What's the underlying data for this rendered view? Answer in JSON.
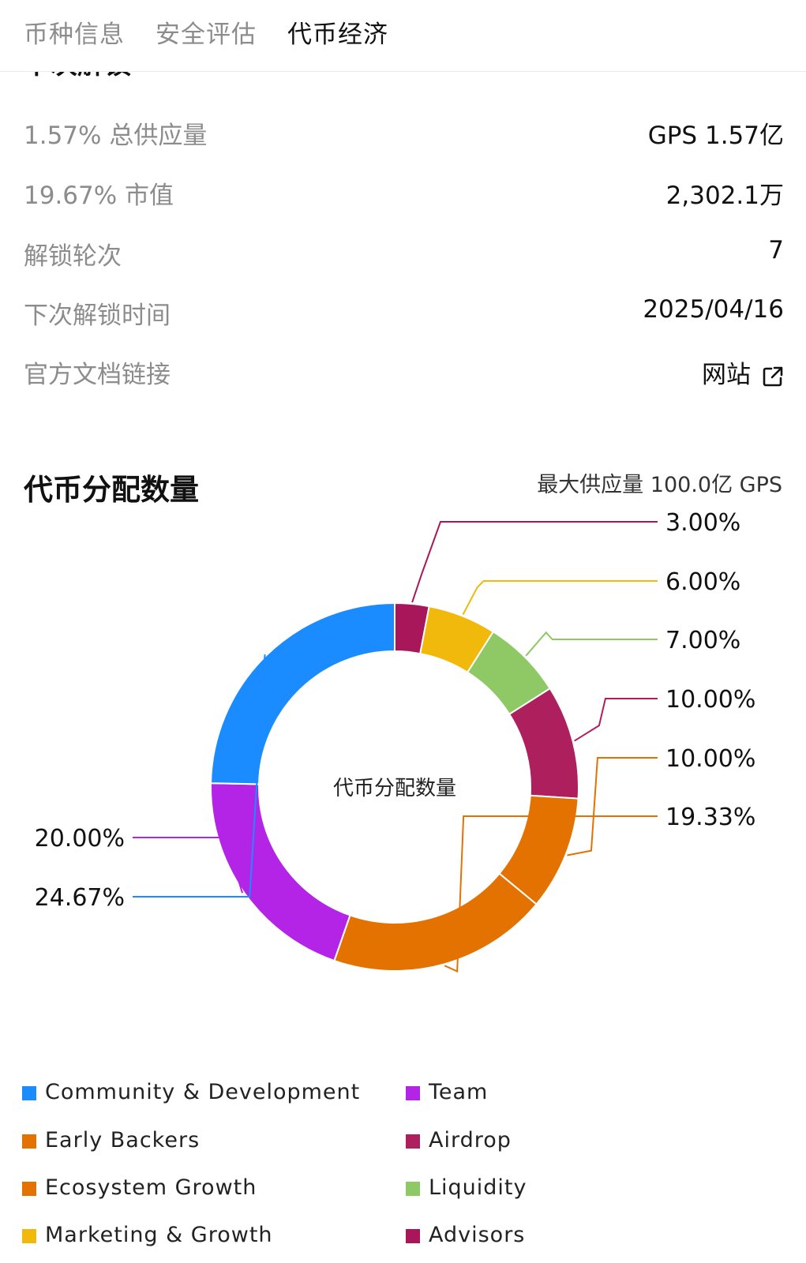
{
  "tabs": [
    {
      "label": "币种信息",
      "active": false
    },
    {
      "label": "安全评估",
      "active": false
    },
    {
      "label": "代币经济",
      "active": true
    }
  ],
  "unlock": {
    "heading": "下次解锁",
    "rows": [
      {
        "label": "1.57% 总供应量",
        "value": "GPS 1.57亿"
      },
      {
        "label": "19.67% 市值",
        "value": "2,302.1万"
      },
      {
        "label": "解锁轮次",
        "value": "7"
      },
      {
        "label": "下次解锁时间",
        "value": "2025/04/16"
      },
      {
        "label": "官方文档链接",
        "value": "网站"
      }
    ]
  },
  "distribution": {
    "title": "代币分配数量",
    "max_supply": "最大供应量 100.0亿 GPS",
    "center_label": "代币分配数量"
  },
  "chart_data": {
    "type": "pie",
    "title": "代币分配数量",
    "donut": true,
    "slices": [
      {
        "name": "Advisors",
        "value": 3.0,
        "label": "3.00%",
        "color": "#a8175a"
      },
      {
        "name": "Marketing & Growth",
        "value": 6.0,
        "label": "6.00%",
        "color": "#f0b90b"
      },
      {
        "name": "Liquidity",
        "value": 7.0,
        "label": "7.00%",
        "color": "#8fc965"
      },
      {
        "name": "Airdrop",
        "value": 10.0,
        "label": "10.00%",
        "color": "#ae1f5e"
      },
      {
        "name": "Ecosystem Growth",
        "value": 10.0,
        "label": "10.00%",
        "color": "#e47200"
      },
      {
        "name": "Early Backers",
        "value": 19.33,
        "label": "19.33%",
        "color": "#e47200"
      },
      {
        "name": "Team",
        "value": 20.0,
        "label": "20.00%",
        "color": "#b424e6"
      },
      {
        "name": "Community & Development",
        "value": 24.67,
        "label": "24.67%",
        "color": "#1a8cff"
      }
    ],
    "legend": [
      {
        "name": "Community & Development",
        "color": "#1a8cff"
      },
      {
        "name": "Team",
        "color": "#b424e6"
      },
      {
        "name": "Early Backers",
        "color": "#e47200"
      },
      {
        "name": "Airdrop",
        "color": "#ae1f5e"
      },
      {
        "name": "Ecosystem Growth",
        "color": "#e47200"
      },
      {
        "name": "Liquidity",
        "color": "#8fc965"
      },
      {
        "name": "Marketing & Growth",
        "color": "#f0b90b"
      },
      {
        "name": "Advisors",
        "color": "#a8175a"
      }
    ],
    "legend_placement": "bottom"
  }
}
